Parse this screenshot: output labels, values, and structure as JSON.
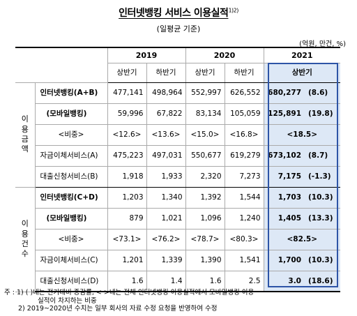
{
  "title": "인터넷뱅킹 서비스 이용실적",
  "title_sup": "1)2)",
  "subtitle": "(일평균 기준)",
  "unit": "(억원, 만건, %)",
  "years": [
    "2019",
    "2020",
    "2021"
  ],
  "halves": [
    "상반기",
    "하반기",
    "상반기",
    "하반기",
    "상반기"
  ],
  "groups": [
    {
      "name": "이\n용\n금\n액",
      "rows": [
        {
          "label": "인터넷뱅킹(A+B)",
          "v": [
            "477,141",
            "498,964",
            "552,997",
            "626,552",
            "680,277"
          ],
          "pct": "(8.6)"
        },
        {
          "label": "(모바일뱅킹)",
          "v": [
            "59,996",
            "67,822",
            "83,134",
            "105,059",
            "125,891"
          ],
          "pct": "(19.8)"
        },
        {
          "label": "<비중>",
          "v": [
            "<12.6>",
            "<13.6>",
            "<15.0>",
            "<16.8>",
            "<18.5>"
          ],
          "pct": ""
        },
        {
          "label": "자금이체서비스(A)",
          "v": [
            "475,223",
            "497,031",
            "550,677",
            "619,279",
            "673,102"
          ],
          "pct": "(8.7)"
        },
        {
          "label": "대출신청서비스(B)",
          "v": [
            "1,918",
            "1,933",
            "2,320",
            "7,273",
            "7,175"
          ],
          "pct": "(-1.3)"
        }
      ]
    },
    {
      "name": "이\n용\n건\n수",
      "rows": [
        {
          "label": "인터넷뱅킹(C+D)",
          "v": [
            "1,203",
            "1,340",
            "1,392",
            "1,544",
            "1,703"
          ],
          "pct": "(10.3)"
        },
        {
          "label": "(모바일뱅킹)",
          "v": [
            "879",
            "1,021",
            "1,096",
            "1,240",
            "1,405"
          ],
          "pct": "(13.3)"
        },
        {
          "label": "<비중>",
          "v": [
            "<73.1>",
            "<76.2>",
            "<78.7>",
            "<80.3>",
            "<82.5>"
          ],
          "pct": ""
        },
        {
          "label": "자금이체서비스(C)",
          "v": [
            "1,201",
            "1,339",
            "1,390",
            "1,541",
            "1,700"
          ],
          "pct": "(10.3)"
        },
        {
          "label": "대출신청서비스(D)",
          "v": [
            "1.6",
            "1.4",
            "1.6",
            "2.5",
            "3.0"
          ],
          "pct": "(18.6)"
        }
      ]
    }
  ],
  "notes": [
    "주 : 1) (  )내는 전기대비 증감률, <  >내는 전체 인터넷뱅킹 이용실적에서 모바일뱅킹 이용",
    "실적이 차지하는 비중",
    "2) 2019~2020년 수치는 일부 회사의 자료 수정 요청을 반영하여 수정"
  ],
  "colors": {
    "highlight_fill": "#dde8f6",
    "highlight_border": "#2d54a6"
  }
}
